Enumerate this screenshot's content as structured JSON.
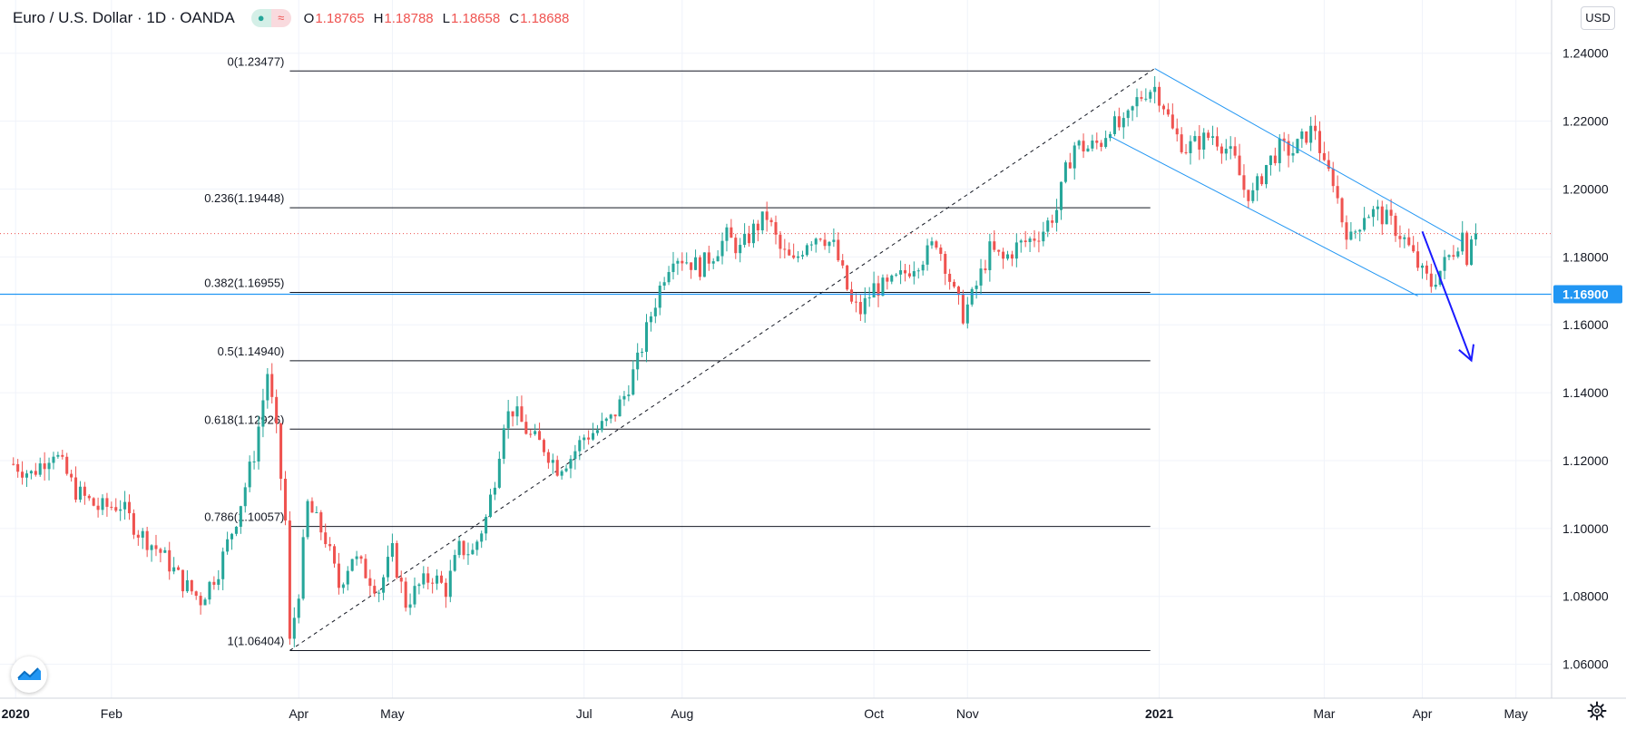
{
  "header": {
    "title": "Euro / U.S. Dollar · 1D · OANDA",
    "open_label": "O",
    "open": "1.18765",
    "high_label": "H",
    "high": "1.18788",
    "low_label": "L",
    "low": "1.18658",
    "close_label": "C",
    "close": "1.18688",
    "toggle_dot_icon": "dot-icon",
    "toggle_wave_icon": "wave-icon"
  },
  "currency_button": "USD",
  "colors": {
    "up": "#26a69a",
    "down": "#ef5350",
    "channel": "#2196f3",
    "support": "#2196f3",
    "arrow": "#1a1aff",
    "fib": "#131722",
    "price_line": "#ef5350",
    "grid": "#f0f3fa",
    "text": "#131722"
  },
  "chart_data": {
    "type": "candlestick",
    "title": "Euro / U.S. Dollar, 1D, OANDA",
    "y_axis": {
      "min": 1.05,
      "max": 1.245,
      "ticks": [
        "1.06000",
        "1.08000",
        "1.10000",
        "1.12000",
        "1.14000",
        "1.16000",
        "1.18000",
        "1.20000",
        "1.22000",
        "1.24000"
      ],
      "highlight_label": "1.16900",
      "highlight_value": 1.169
    },
    "x_axis": {
      "ticks": [
        {
          "label": "2020",
          "t": 0.5,
          "bold": true
        },
        {
          "label": "Feb",
          "t": 22
        },
        {
          "label": "Apr",
          "t": 64
        },
        {
          "label": "May",
          "t": 85
        },
        {
          "label": "Jul",
          "t": 128
        },
        {
          "label": "Aug",
          "t": 150
        },
        {
          "label": "Oct",
          "t": 193
        },
        {
          "label": "Nov",
          "t": 214
        },
        {
          "label": "2021",
          "t": 257,
          "bold": true
        },
        {
          "label": "Mar",
          "t": 294
        },
        {
          "label": "Apr",
          "t": 316
        },
        {
          "label": "May",
          "t": 337
        }
      ],
      "t_min": -3,
      "t_max": 345
    },
    "price_line": 1.18688,
    "support_line": 1.169,
    "fibonacci": {
      "t_start": 62,
      "t_end": 255,
      "levels": [
        {
          "label": "0(1.23477)",
          "value": 1.23477
        },
        {
          "label": "0.236(1.19448)",
          "value": 1.19448
        },
        {
          "label": "0.382(1.16955)",
          "value": 1.16955
        },
        {
          "label": "0.5(1.14940)",
          "value": 1.1494
        },
        {
          "label": "0.618(1.12926)",
          "value": 1.12926
        },
        {
          "label": "0.786(1.10057)",
          "value": 1.10057
        },
        {
          "label": "1(1.06404)",
          "value": 1.06404
        }
      ],
      "trend_line": {
        "t1": 62,
        "v1": 1.06404,
        "t2": 256,
        "v2": 1.2355
      }
    },
    "channel": {
      "upper": {
        "t1": 256,
        "v1": 1.2355,
        "t2": 325,
        "v2": 1.1845
      },
      "lower": {
        "t1": 246,
        "v1": 1.2155,
        "t2": 315,
        "v2": 1.1685
      }
    },
    "forecast_arrow": {
      "t1": 316,
      "v1": 1.1875,
      "t2": 327,
      "v2": 1.1495
    },
    "series_points": [
      [
        0,
        1.119
      ],
      [
        4,
        1.116
      ],
      [
        9,
        1.123
      ],
      [
        14,
        1.111
      ],
      [
        19,
        1.106
      ],
      [
        24,
        1.107
      ],
      [
        28,
        1.099
      ],
      [
        33,
        1.093
      ],
      [
        38,
        1.084
      ],
      [
        42,
        1.079
      ],
      [
        46,
        1.088
      ],
      [
        50,
        1.103
      ],
      [
        54,
        1.122
      ],
      [
        57,
        1.146
      ],
      [
        59,
        1.128
      ],
      [
        61,
        1.102
      ],
      [
        62,
        1.066
      ],
      [
        64,
        1.082
      ],
      [
        66,
        1.107
      ],
      [
        70,
        1.097
      ],
      [
        73,
        1.083
      ],
      [
        76,
        1.092
      ],
      [
        79,
        1.087
      ],
      [
        82,
        1.082
      ],
      [
        85,
        1.093
      ],
      [
        88,
        1.078
      ],
      [
        91,
        1.083
      ],
      [
        94,
        1.086
      ],
      [
        97,
        1.082
      ],
      [
        100,
        1.094
      ],
      [
        103,
        1.093
      ],
      [
        106,
        1.103
      ],
      [
        108,
        1.115
      ],
      [
        110,
        1.132
      ],
      [
        112,
        1.135
      ],
      [
        116,
        1.127
      ],
      [
        119,
        1.124
      ],
      [
        122,
        1.118
      ],
      [
        125,
        1.121
      ],
      [
        128,
        1.127
      ],
      [
        131,
        1.129
      ],
      [
        134,
        1.132
      ],
      [
        137,
        1.139
      ],
      [
        140,
        1.149
      ],
      [
        143,
        1.163
      ],
      [
        146,
        1.175
      ],
      [
        148,
        1.181
      ],
      [
        151,
        1.179
      ],
      [
        154,
        1.177
      ],
      [
        157,
        1.181
      ],
      [
        160,
        1.186
      ],
      [
        163,
        1.182
      ],
      [
        166,
        1.188
      ],
      [
        169,
        1.192
      ],
      [
        172,
        1.182
      ],
      [
        175,
        1.178
      ],
      [
        178,
        1.185
      ],
      [
        181,
        1.187
      ],
      [
        184,
        1.183
      ],
      [
        186,
        1.175
      ],
      [
        188,
        1.166
      ],
      [
        190,
        1.164
      ],
      [
        193,
        1.171
      ],
      [
        196,
        1.171
      ],
      [
        199,
        1.174
      ],
      [
        202,
        1.178
      ],
      [
        205,
        1.181
      ],
      [
        207,
        1.185
      ],
      [
        209,
        1.178
      ],
      [
        211,
        1.169
      ],
      [
        213,
        1.163
      ],
      [
        215,
        1.168
      ],
      [
        217,
        1.175
      ],
      [
        219,
        1.182
      ],
      [
        222,
        1.179
      ],
      [
        225,
        1.183
      ],
      [
        228,
        1.185
      ],
      [
        231,
        1.188
      ],
      [
        234,
        1.194
      ],
      [
        236,
        1.205
      ],
      [
        238,
        1.213
      ],
      [
        241,
        1.212
      ],
      [
        244,
        1.214
      ],
      [
        246,
        1.219
      ],
      [
        249,
        1.218
      ],
      [
        252,
        1.226
      ],
      [
        254,
        1.229
      ],
      [
        256,
        1.23
      ],
      [
        258,
        1.225
      ],
      [
        260,
        1.217
      ],
      [
        263,
        1.212
      ],
      [
        266,
        1.214
      ],
      [
        269,
        1.216
      ],
      [
        272,
        1.212
      ],
      [
        274,
        1.208
      ],
      [
        276,
        1.2
      ],
      [
        278,
        1.198
      ],
      [
        281,
        1.207
      ],
      [
        284,
        1.212
      ],
      [
        287,
        1.211
      ],
      [
        290,
        1.216
      ],
      [
        292,
        1.218
      ],
      [
        294,
        1.206
      ],
      [
        296,
        1.203
      ],
      [
        298,
        1.191
      ],
      [
        300,
        1.185
      ],
      [
        303,
        1.193
      ],
      [
        306,
        1.193
      ],
      [
        309,
        1.19
      ],
      [
        312,
        1.185
      ],
      [
        314,
        1.18
      ],
      [
        316,
        1.175
      ],
      [
        318,
        1.172
      ],
      [
        320,
        1.176
      ],
      [
        323,
        1.182
      ],
      [
        325,
        1.187
      ],
      [
        326,
        1.18
      ],
      [
        327,
        1.187
      ]
    ],
    "candle_count": 329
  }
}
